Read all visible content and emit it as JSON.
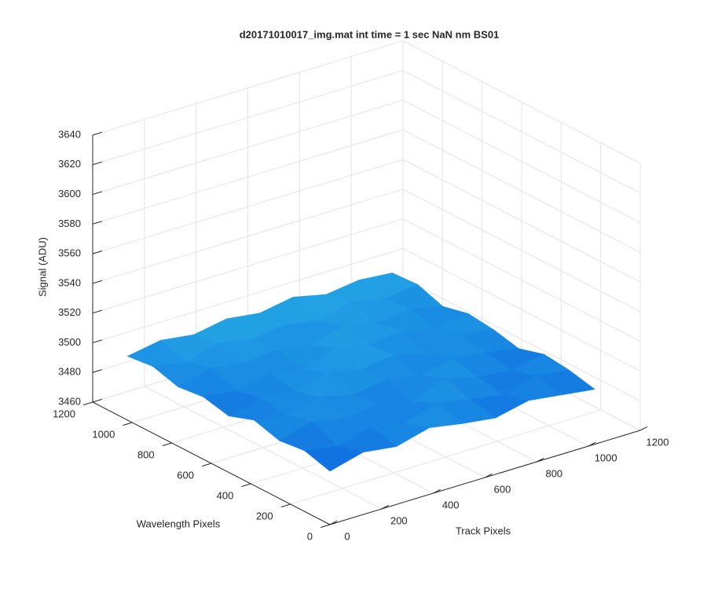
{
  "chart_data": {
    "type": "surface3d",
    "title": "d20171010017_img.mat int time = 1 sec  NaN nm BS01",
    "xlabel": "Track Pixels",
    "ylabel": "Wavelength Pixels",
    "zlabel": "Signal (ADU)",
    "x": [
      0,
      128,
      256,
      384,
      512,
      640,
      768,
      896,
      1024
    ],
    "y": [
      0,
      128,
      256,
      384,
      512,
      640,
      768,
      896,
      1024
    ],
    "z": [
      [
        3496,
        3502,
        3499,
        3505,
        3501,
        3498,
        3503,
        3500,
        3497
      ],
      [
        3501,
        3497,
        3504,
        3499,
        3506,
        3502,
        3498,
        3504,
        3501
      ],
      [
        3499,
        3505,
        3500,
        3503,
        3498,
        3507,
        3501,
        3499,
        3503
      ],
      [
        3504,
        3500,
        3506,
        3501,
        3504,
        3500,
        3505,
        3502,
        3498
      ],
      [
        3498,
        3503,
        3501,
        3507,
        3502,
        3505,
        3499,
        3506,
        3502
      ],
      [
        3502,
        3499,
        3505,
        3500,
        3508,
        3503,
        3506,
        3501,
        3504
      ],
      [
        3500,
        3506,
        3502,
        3505,
        3501,
        3507,
        3502,
        3505,
        3500
      ],
      [
        3505,
        3501,
        3507,
        3503,
        3506,
        3502,
        3508,
        3503,
        3506
      ],
      [
        3503,
        3507,
        3504,
        3508,
        3505,
        3509,
        3504,
        3507,
        3505
      ]
    ],
    "xlim": [
      0,
      1200
    ],
    "ylim": [
      0,
      1200
    ],
    "zlim": [
      3460,
      3640
    ],
    "xticks": [
      0,
      200,
      400,
      600,
      800,
      1000,
      1200
    ],
    "yticks": [
      0,
      200,
      400,
      600,
      800,
      1000,
      1200
    ],
    "zticks": [
      3460,
      3480,
      3500,
      3520,
      3540,
      3560,
      3580,
      3600,
      3620,
      3640
    ],
    "colors": [
      "#0a5ee0",
      "#2ab8e6"
    ],
    "grid": true
  }
}
